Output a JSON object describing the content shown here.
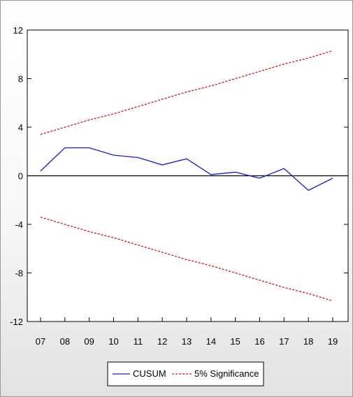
{
  "chart_data": {
    "type": "line",
    "title": "",
    "xlabel": "",
    "ylabel": "",
    "categories": [
      "07",
      "08",
      "09",
      "10",
      "11",
      "12",
      "13",
      "14",
      "15",
      "16",
      "17",
      "18",
      "19"
    ],
    "ylim": [
      -12,
      12
    ],
    "yticks": [
      "12",
      "8",
      "4",
      "0",
      "-4",
      "-8",
      "-12"
    ],
    "zero_line": true,
    "grid": false,
    "legend_position": "bottom",
    "series": [
      {
        "name": "CUSUM",
        "color": "#1a1ad6",
        "style": "solid",
        "values": [
          0.4,
          2.3,
          2.3,
          1.7,
          1.5,
          0.9,
          1.4,
          0.1,
          0.3,
          -0.2,
          0.6,
          -1.2,
          -0.2
        ]
      },
      {
        "name": "5% Significance",
        "color": "#e01010",
        "style": "dashed",
        "values": [
          3.4,
          4.0,
          4.6,
          5.1,
          5.7,
          6.3,
          6.9,
          7.4,
          8.0,
          8.6,
          9.2,
          9.7,
          10.3
        ]
      },
      {
        "name": "",
        "color": "#e01010",
        "style": "dashed",
        "values": [
          -3.4,
          -4.0,
          -4.6,
          -5.1,
          -5.7,
          -6.3,
          -6.9,
          -7.4,
          -8.0,
          -8.6,
          -9.2,
          -9.7,
          -10.3
        ]
      }
    ]
  },
  "legend": {
    "items": [
      {
        "label": "CUSUM",
        "color": "#1a1ad6",
        "style": "solid"
      },
      {
        "label": "5% Significance",
        "color": "#e01010",
        "style": "dashed"
      }
    ]
  }
}
